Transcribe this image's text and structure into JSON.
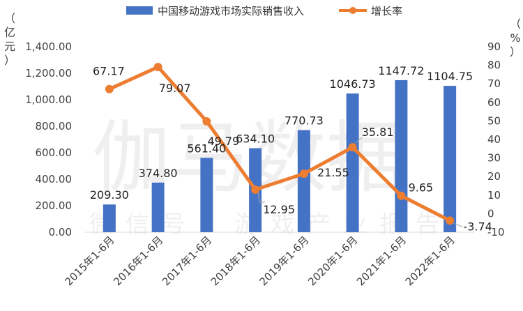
{
  "chart_data": {
    "type": "bar+line",
    "categories": [
      "2015年1-6月",
      "2016年1-6月",
      "2017年1-6月",
      "2018年1-6月",
      "2019年1-6月",
      "2020年1-6月",
      "2021年1-6月",
      "2022年1-6月"
    ],
    "series": [
      {
        "name": "中国移动游戏市场实际销售收入",
        "type": "bar",
        "axis": "left",
        "values": [
          209.3,
          374.8,
          561.4,
          634.1,
          770.73,
          1046.73,
          1147.72,
          1104.75
        ],
        "labels": [
          "209.30",
          "374.80",
          "561.40",
          "634.10",
          "770.73",
          "1046.73",
          "1147.72",
          "1104.75"
        ]
      },
      {
        "name": "增长率",
        "type": "line",
        "axis": "right",
        "values": [
          67.17,
          79.07,
          49.79,
          12.95,
          21.55,
          35.81,
          9.65,
          -3.74
        ],
        "labels": [
          "67.17",
          "79.07",
          "49.79",
          "12.95",
          "21.55",
          "35.81",
          "9.65",
          "-3.74"
        ]
      }
    ],
    "left_axis": {
      "label_chars": [
        "（",
        "亿",
        "元",
        "）"
      ],
      "ylim": [
        0,
        1400
      ],
      "ticks": [
        "0.00",
        "200.00",
        "400.00",
        "600.00",
        "800.00",
        "1,000.00",
        "1,200.00",
        "1,400.00"
      ]
    },
    "right_axis": {
      "label_chars": [
        "（",
        "%",
        "）"
      ],
      "ylim": [
        -10,
        90
      ],
      "ticks": [
        "-10",
        "0",
        "10",
        "20",
        "30",
        "40",
        "50",
        "60",
        "70",
        "80",
        "90"
      ]
    },
    "legend": [
      "中国移动游戏市场实际销售收入",
      "增长率"
    ],
    "watermark": {
      "main": "伽马数据",
      "sub": "微信号：游戏产业报告"
    }
  },
  "colors": {
    "bar": "#4472C4",
    "line": "#ED7D31",
    "axis": "#D9D9D9"
  }
}
